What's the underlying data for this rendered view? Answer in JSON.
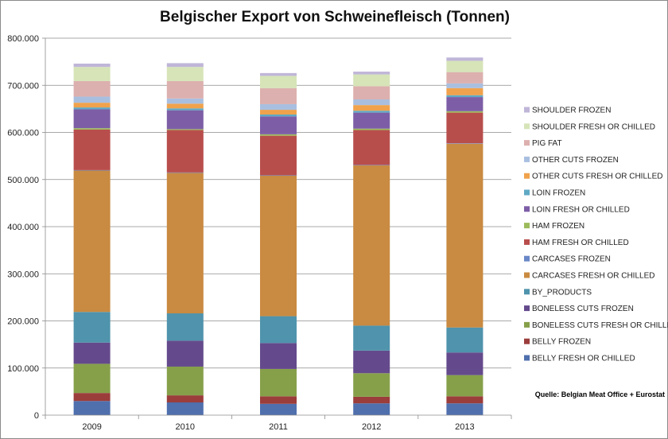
{
  "chart_data": {
    "type": "bar",
    "stacked": true,
    "title": "Belgischer Export von Schweinefleisch (Tonnen)",
    "source": "Quelle: Belgian Meat Office  + Eurostat",
    "categories": [
      "2009",
      "2010",
      "2011",
      "2012",
      "2013"
    ],
    "ylim": [
      0,
      800000
    ],
    "y_ticks": [
      0,
      100000,
      200000,
      300000,
      400000,
      500000,
      600000,
      700000,
      800000
    ],
    "y_tick_labels": [
      "0",
      "100.000",
      "200.000",
      "300.000",
      "400.000",
      "500.000",
      "600.000",
      "700.000",
      "800.000"
    ],
    "grid": true,
    "legend_position": "right",
    "series": [
      {
        "name": "BELLY FRESH OR CHILLED",
        "color": "#4f6fad",
        "values": [
          30000,
          27000,
          24000,
          25000,
          25000
        ]
      },
      {
        "name": "BELLY FROZEN",
        "color": "#9b3d3b",
        "values": [
          17000,
          15000,
          16000,
          14000,
          15000
        ]
      },
      {
        "name": "BONELESS CUTS FRESH OR CHILLED",
        "color": "#86a04a",
        "values": [
          62000,
          61000,
          58000,
          50000,
          45000
        ]
      },
      {
        "name": "BONELESS CUTS FROZEN",
        "color": "#644a8c",
        "values": [
          45000,
          55000,
          55000,
          48000,
          48000
        ]
      },
      {
        "name": "BY_PRODUCTS",
        "color": "#4f93ac",
        "values": [
          65000,
          58000,
          57000,
          53000,
          53000
        ]
      },
      {
        "name": "CARCASES FRESH OR CHILLED",
        "color": "#c98a41",
        "values": [
          300000,
          298000,
          298000,
          340000,
          390000
        ]
      },
      {
        "name": "CARCASES FROZEN",
        "color": "#6a88c7",
        "values": [
          1000,
          1000,
          1000,
          1000,
          1000
        ]
      },
      {
        "name": "HAM FRESH OR CHILLED",
        "color": "#b84e4c",
        "values": [
          86000,
          90000,
          84000,
          74000,
          65000
        ]
      },
      {
        "name": "HAM FROZEN",
        "color": "#9cbb5b",
        "values": [
          3000,
          2000,
          3000,
          3000,
          3000
        ]
      },
      {
        "name": "LOIN FRESH OR CHILLED",
        "color": "#7d5ea6",
        "values": [
          40000,
          40000,
          38000,
          34000,
          30000
        ]
      },
      {
        "name": "LOIN FROZEN",
        "color": "#5fa9c4",
        "values": [
          4000,
          4000,
          4000,
          4000,
          4000
        ]
      },
      {
        "name": "OTHER CUTS FRESH OR CHILLED",
        "color": "#f0a24c",
        "values": [
          10000,
          10000,
          10000,
          12000,
          15000
        ]
      },
      {
        "name": "OTHER CUTS FROZEN",
        "color": "#a9bfe0",
        "values": [
          13000,
          11000,
          12000,
          12000,
          10000
        ]
      },
      {
        "name": "PIG FAT",
        "color": "#dcb0ae",
        "values": [
          33000,
          37000,
          34000,
          28000,
          24000
        ]
      },
      {
        "name": "SHOULDER FRESH OR CHILLED",
        "color": "#d6e4b8",
        "values": [
          30000,
          30000,
          26000,
          25000,
          24000
        ]
      },
      {
        "name": "SHOULDER FROZEN",
        "color": "#c0b6d8",
        "values": [
          7000,
          8000,
          6000,
          6000,
          7000
        ]
      }
    ]
  }
}
